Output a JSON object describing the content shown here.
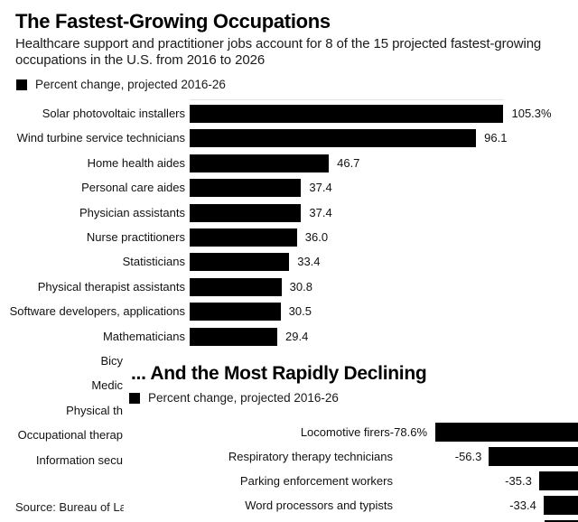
{
  "header": {
    "title": "The Fastest-Growing Occupations",
    "subtitle_lines": [
      "Healthcare support and practitioner jobs account for 8 of the 15 projected fastest-growing",
      "occupations in the U.S. from 2016 to 2026"
    ]
  },
  "source_fragment": "Source: Bureau of La",
  "colors": {
    "bar": "#000000",
    "background": "#ffffff",
    "text": "#111111"
  },
  "chart_data": [
    {
      "type": "bar",
      "orientation": "horizontal",
      "title": "The Fastest-Growing Occupations",
      "legend": "Percent change, projected 2016-26",
      "xlabel": "Percent change",
      "xlim": [
        0,
        110
      ],
      "grid": false,
      "categories": [
        "Solar photovoltaic installers",
        "Wind turbine service technicians",
        "Home health aides",
        "Personal care aides",
        "Physician assistants",
        "Nurse practitioners",
        "Statisticians",
        "Physical therapist assistants",
        "Software developers, applications",
        "Mathematicians"
      ],
      "values": [
        105.3,
        96.1,
        46.7,
        37.4,
        37.4,
        36.0,
        33.4,
        30.8,
        30.5,
        29.4
      ],
      "value_labels": [
        "105.3%",
        "96.1",
        "46.7",
        "37.4",
        "37.4",
        "36.0",
        "33.4",
        "30.8",
        "30.5",
        "29.4"
      ],
      "partial_categories_visible": [
        "Bicy",
        "Medic",
        "Physical th",
        "Occupational therap",
        "Information secu"
      ]
    },
    {
      "type": "bar",
      "orientation": "horizontal",
      "title": "... And the Most Rapidly Declining",
      "legend": "Percent change, projected 2016-26",
      "xlabel": "Percent change",
      "grid": false,
      "categories": [
        "Locomotive firers",
        "Respiratory therapy technicians",
        "Parking enforcement workers",
        "Word processors and typists"
      ],
      "values": [
        -78.6,
        -56.3,
        -35.3,
        -33.4
      ],
      "value_labels": [
        "-78.6%",
        "-56.3",
        "-35.3",
        "-33.4"
      ],
      "has_clipped_extra_bar": true
    }
  ]
}
